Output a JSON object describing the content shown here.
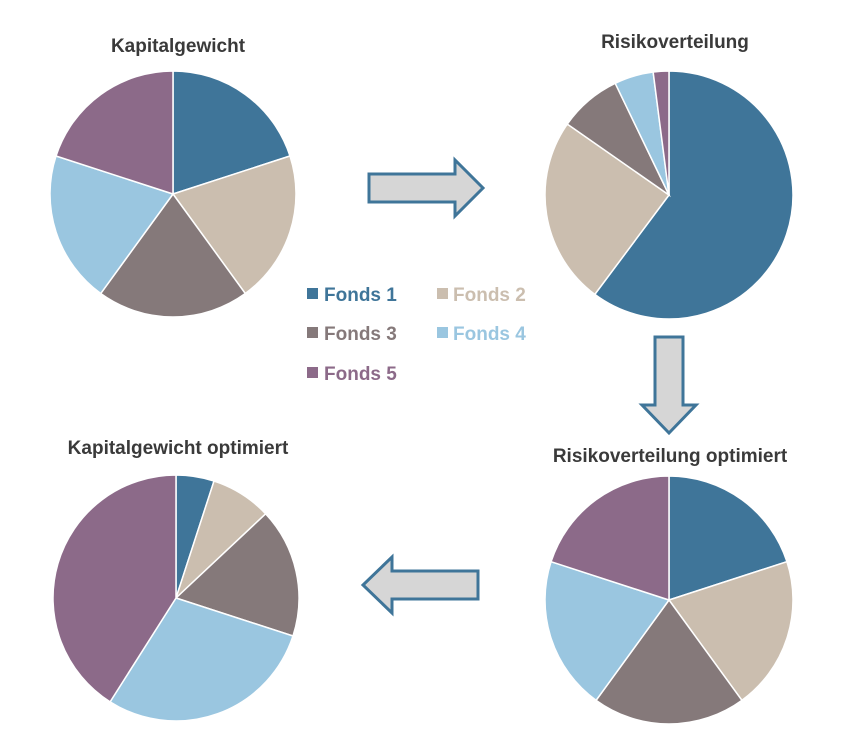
{
  "colors": {
    "fonds1": "#3f7599",
    "fonds2": "#cbbeaf",
    "fonds3": "#85797a",
    "fonds4": "#9ac6e0",
    "fonds5": "#8c6a89"
  },
  "legend": {
    "items": [
      {
        "label": "Fonds 1",
        "color": "#3f7599"
      },
      {
        "label": "Fonds 2",
        "color": "#cbbeaf"
      },
      {
        "label": "Fonds 3",
        "color": "#85797a"
      },
      {
        "label": "Fonds 4",
        "color": "#9ac6e0"
      },
      {
        "label": "Fonds 5",
        "color": "#8c6a89"
      }
    ]
  },
  "arrows": [
    "arrow-right",
    "arrow-down",
    "arrow-left"
  ],
  "chart_data": [
    {
      "type": "pie",
      "title": "Kapitalgewicht",
      "categories": [
        "Fonds 1",
        "Fonds 2",
        "Fonds 3",
        "Fonds 4",
        "Fonds 5"
      ],
      "values": [
        20,
        20,
        20,
        20,
        20
      ]
    },
    {
      "type": "pie",
      "title": "Risikoverteilung",
      "categories": [
        "Fonds 1",
        "Fonds 2",
        "Fonds 3",
        "Fonds 4",
        "Fonds 5"
      ],
      "values": [
        59,
        24,
        8,
        5,
        2
      ]
    },
    {
      "type": "pie",
      "title": "Risikoverteilung optimiert",
      "categories": [
        "Fonds 1",
        "Fonds 2",
        "Fonds 3",
        "Fonds 4",
        "Fonds 5"
      ],
      "values": [
        20,
        20,
        20,
        20,
        20
      ]
    },
    {
      "type": "pie",
      "title": "Kapitalgewicht optimiert",
      "categories": [
        "Fonds 1",
        "Fonds 2",
        "Fonds 3",
        "Fonds 4",
        "Fonds 5"
      ],
      "values": [
        5,
        8,
        17,
        29,
        41
      ]
    }
  ]
}
